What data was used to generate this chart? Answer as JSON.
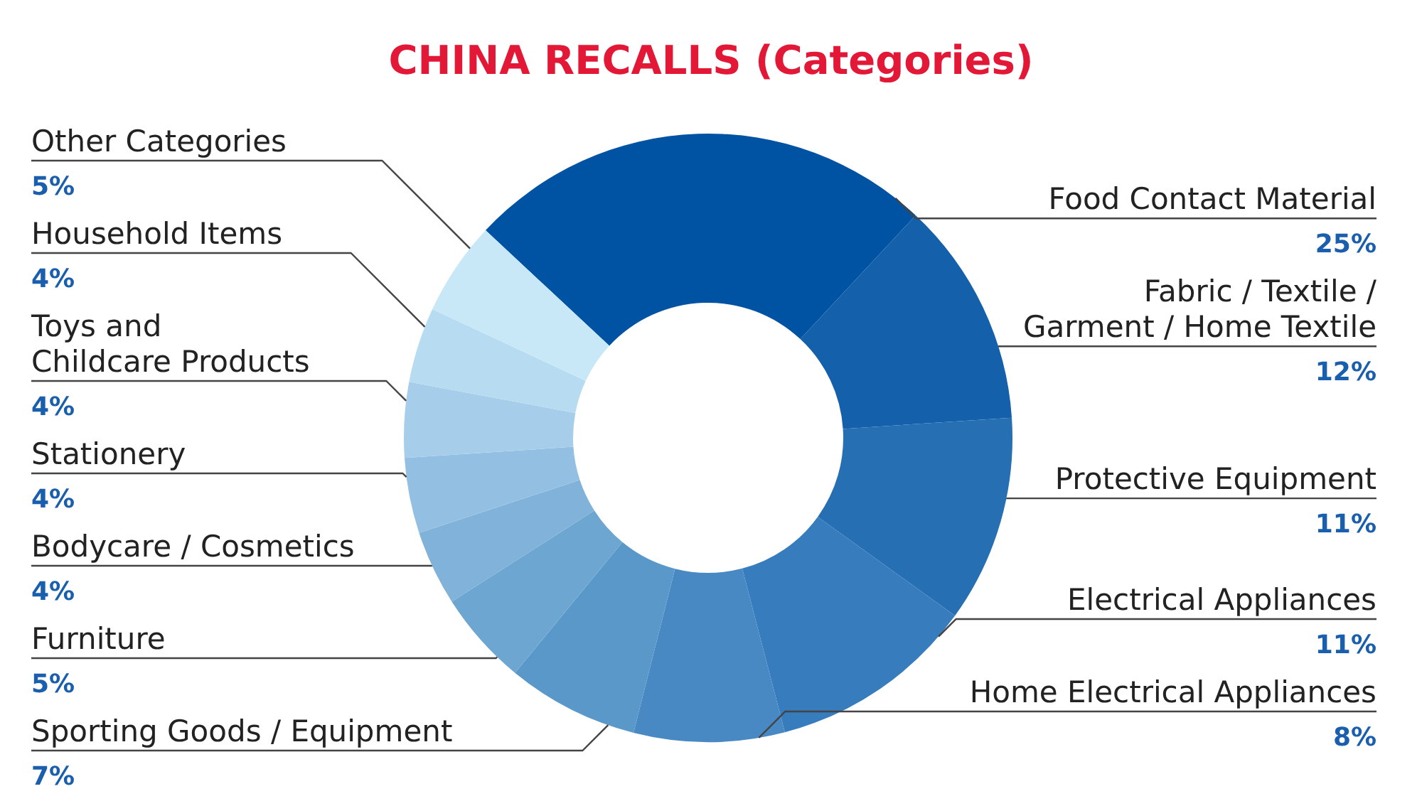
{
  "chart_data": {
    "type": "donut",
    "title": "CHINA RECALLS (Categories)",
    "categories": [
      "Food Contact Material",
      "Fabric / Textile /\nGarment / Home Textile",
      "Protective Equipment",
      "Electrical Appliances",
      "Home Electrical Appliances",
      "Sporting Goods / Equipment",
      "Furniture",
      "Bodycare / Cosmetics",
      "Stationery",
      "Toys and\nChildcare Products",
      "Household Items",
      "Other Categories"
    ],
    "values": [
      25,
      12,
      11,
      11,
      8,
      7,
      5,
      4,
      4,
      4,
      4,
      5
    ],
    "value_labels": [
      "25%",
      "12%",
      "11%",
      "11%",
      "8%",
      "7%",
      "5%",
      "4%",
      "4%",
      "4%",
      "4%",
      "5%"
    ],
    "colors": [
      "#0052a3",
      "#1460aa",
      "#256fb2",
      "#377cbc",
      "#4888c3",
      "#5a98ca",
      "#6ea6d2",
      "#80b2da",
      "#93c0e2",
      "#a6cde9",
      "#b7dbf1",
      "#c8e8f8"
    ]
  }
}
